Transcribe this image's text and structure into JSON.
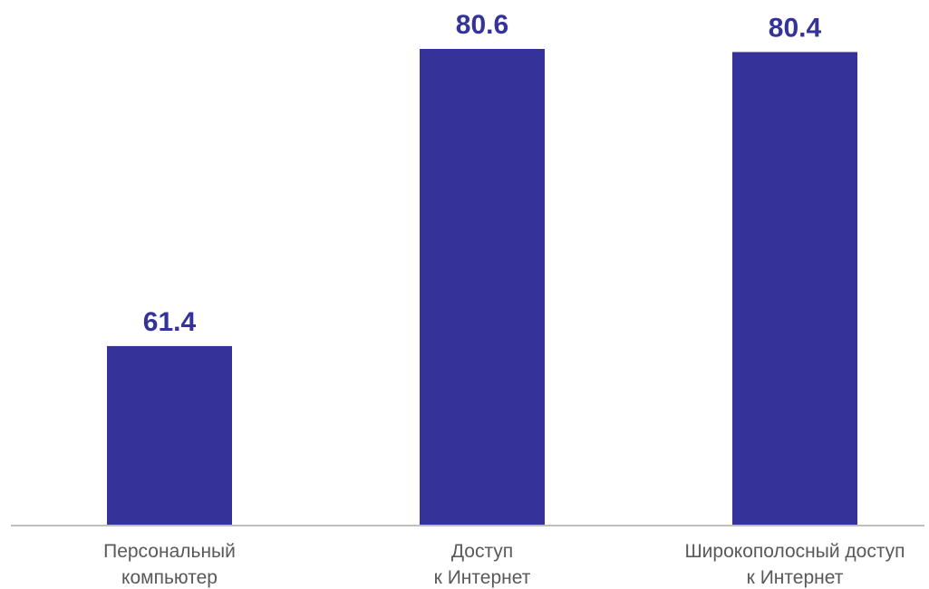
{
  "chart_data": {
    "type": "bar",
    "categories": [
      [
        "Персональный",
        "компьютер"
      ],
      [
        "Доступ",
        "к Интернет"
      ],
      [
        "Широкополосный доступ",
        "к Интернет"
      ]
    ],
    "values": [
      61.4,
      80.6,
      80.4
    ],
    "value_labels": [
      "61.4",
      "80.6",
      "80.4"
    ],
    "bar_color": "#35339A",
    "label_color": "#35339A",
    "axis_color": "#BFBFBF",
    "category_text_color": "#595959",
    "ylim": [
      49.8,
      80.6
    ],
    "grid": false,
    "legend": false
  }
}
